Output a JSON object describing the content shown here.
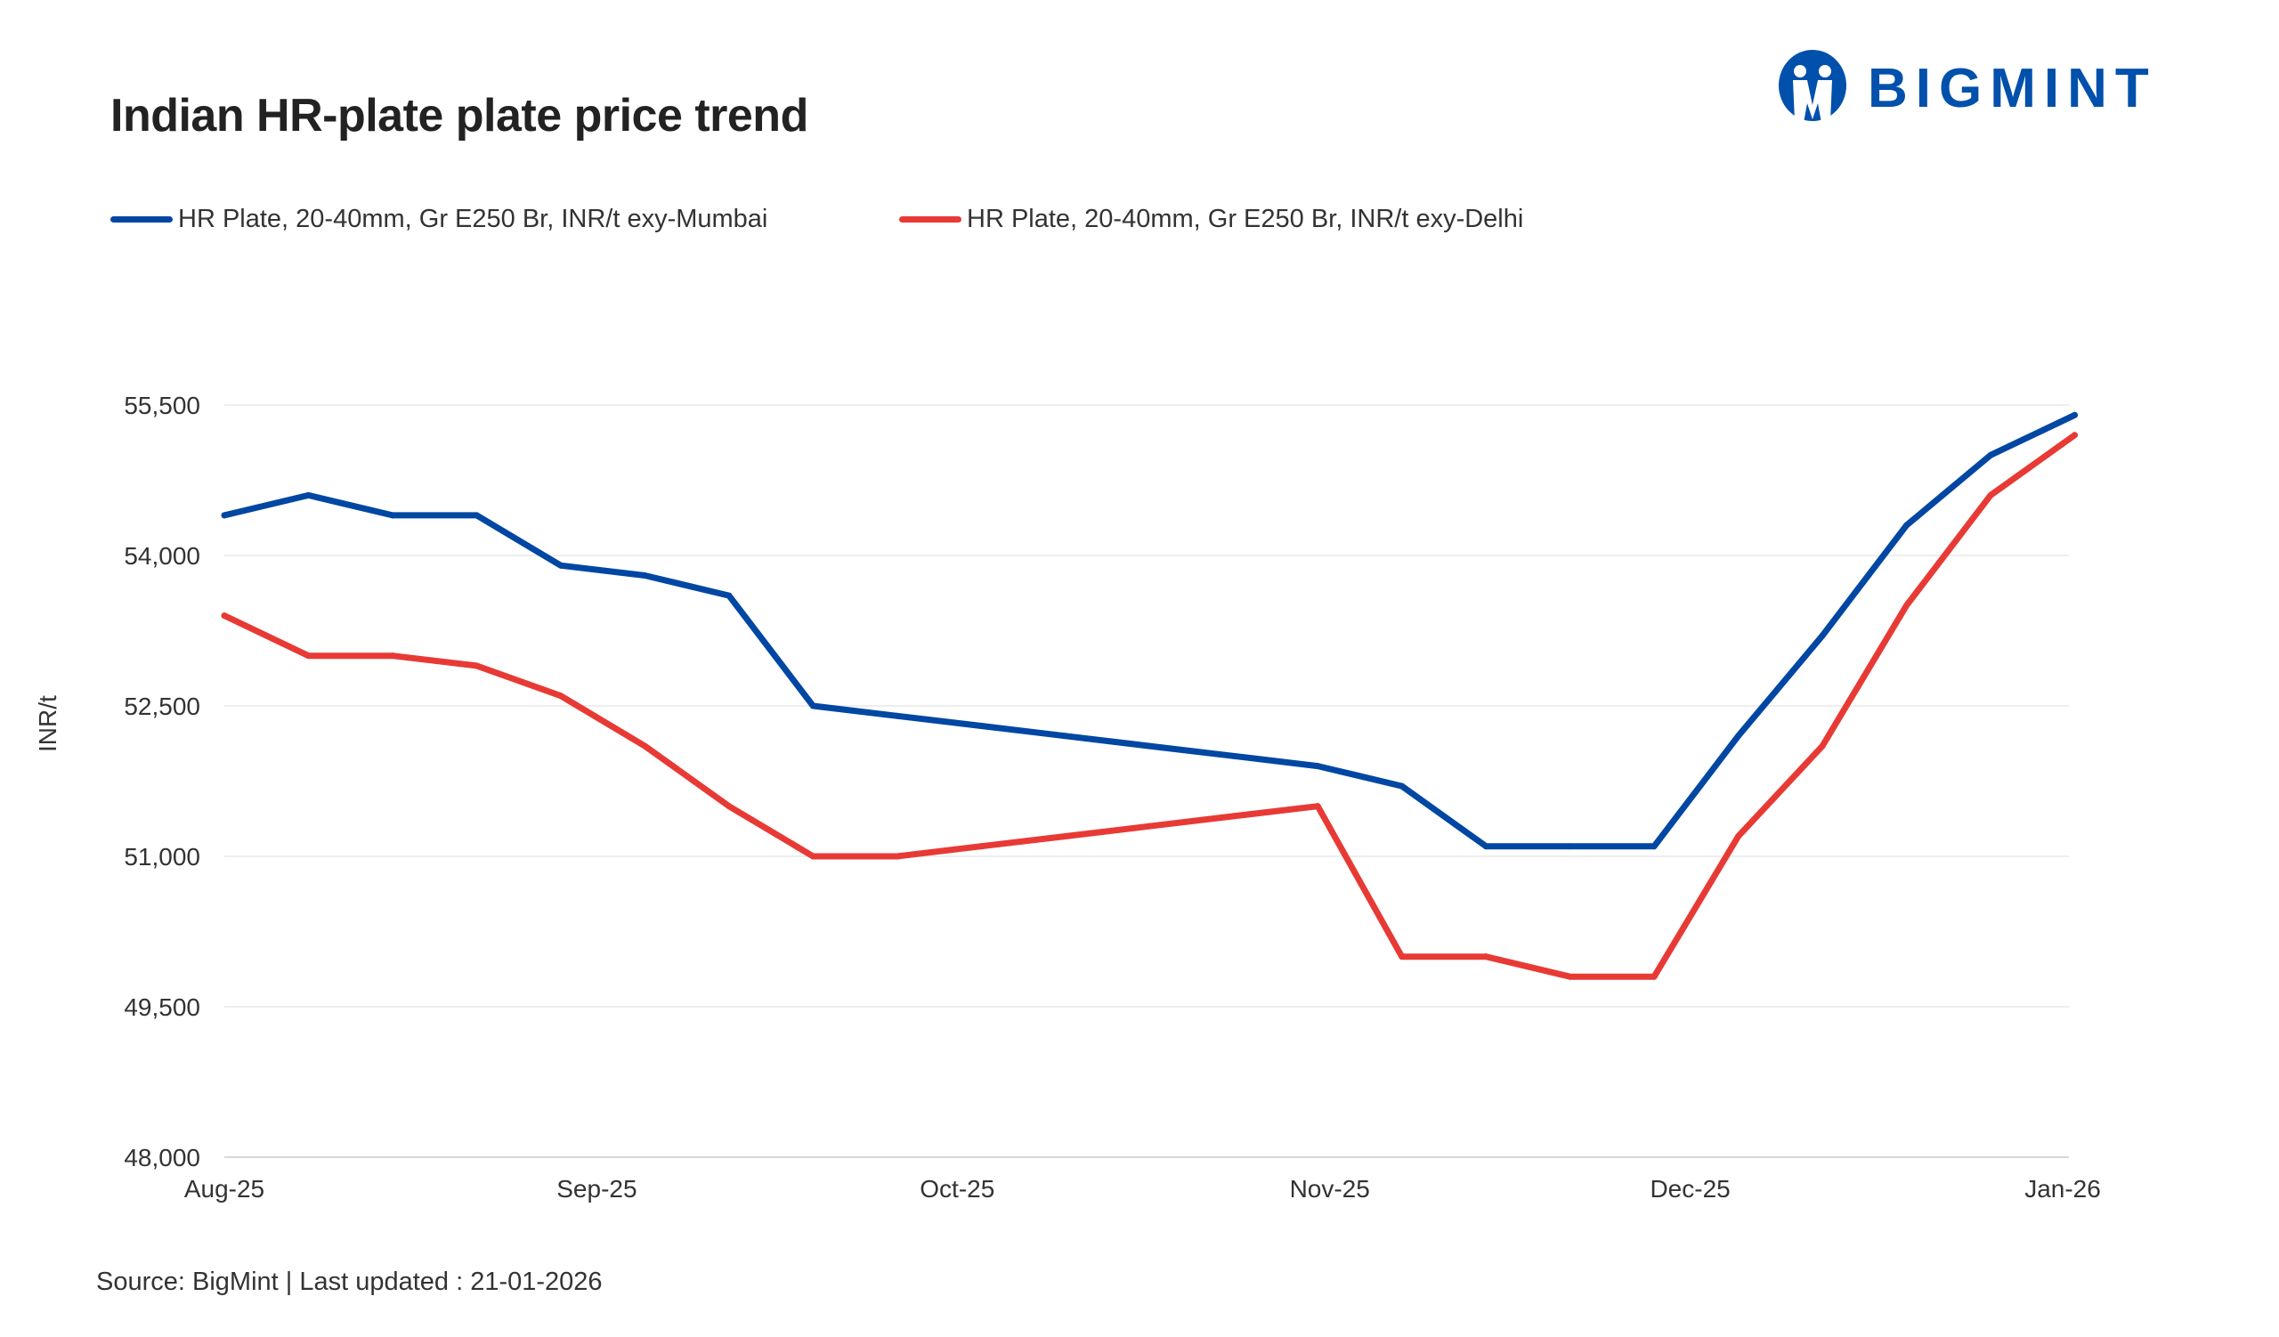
{
  "chart_data": {
    "type": "line",
    "title": "Indian HR-plate plate price trend",
    "ylabel": "INR/t",
    "xlabel": "",
    "ylim": [
      48000,
      55500
    ],
    "yticks": [
      48000,
      49500,
      51000,
      52500,
      54000,
      55500
    ],
    "ytick_labels": [
      "48,000",
      "49,500",
      "51,000",
      "52,500",
      "54,000",
      "55,500"
    ],
    "xticks": [
      "2025-08-01",
      "2025-09-01",
      "2025-10-01",
      "2025-11-01",
      "2025-12-01",
      "2026-01-01"
    ],
    "xtick_labels": [
      "Aug-25",
      "Sep-25",
      "Oct-25",
      "Nov-25",
      "Dec-25",
      "Jan-26"
    ],
    "grid": "horizontal",
    "legend_position": "top-left",
    "x": [
      "2025-08-01",
      "2025-08-08",
      "2025-08-15",
      "2025-08-22",
      "2025-08-29",
      "2025-09-05",
      "2025-09-12",
      "2025-09-19",
      "2025-09-26",
      "2025-10-03",
      "2025-10-10",
      "2025-10-17",
      "2025-10-24",
      "2025-10-31",
      "2025-11-07",
      "2025-11-14",
      "2025-11-21",
      "2025-11-28",
      "2025-12-05",
      "2025-12-12",
      "2025-12-19",
      "2025-12-26",
      "2026-01-02"
    ],
    "series": [
      {
        "name": "HR Plate, 20-40mm, Gr E250 Br, INR/t exy-Mumbai",
        "color": "#0047a3",
        "values": [
          54400,
          54600,
          54400,
          54400,
          53900,
          53800,
          53600,
          52500,
          52400,
          52300,
          52200,
          52100,
          52000,
          51900,
          51700,
          51100,
          51100,
          51100,
          52200,
          53200,
          54300,
          55000,
          55400
        ]
      },
      {
        "name": "HR Plate, 20-40mm, Gr E250 Br, INR/t exy-Delhi",
        "color": "#e83a35",
        "values": [
          53400,
          53000,
          53000,
          52900,
          52600,
          52100,
          51500,
          51000,
          51000,
          51100,
          51200,
          51300,
          51400,
          51500,
          50000,
          50000,
          49800,
          49800,
          51200,
          52100,
          53500,
          54600,
          55200
        ]
      }
    ]
  },
  "logo": {
    "text": "BIGMINT",
    "color": "#0050ac"
  },
  "footer": {
    "source": "Source: BigMint | Last updated : 21-01-2026"
  }
}
